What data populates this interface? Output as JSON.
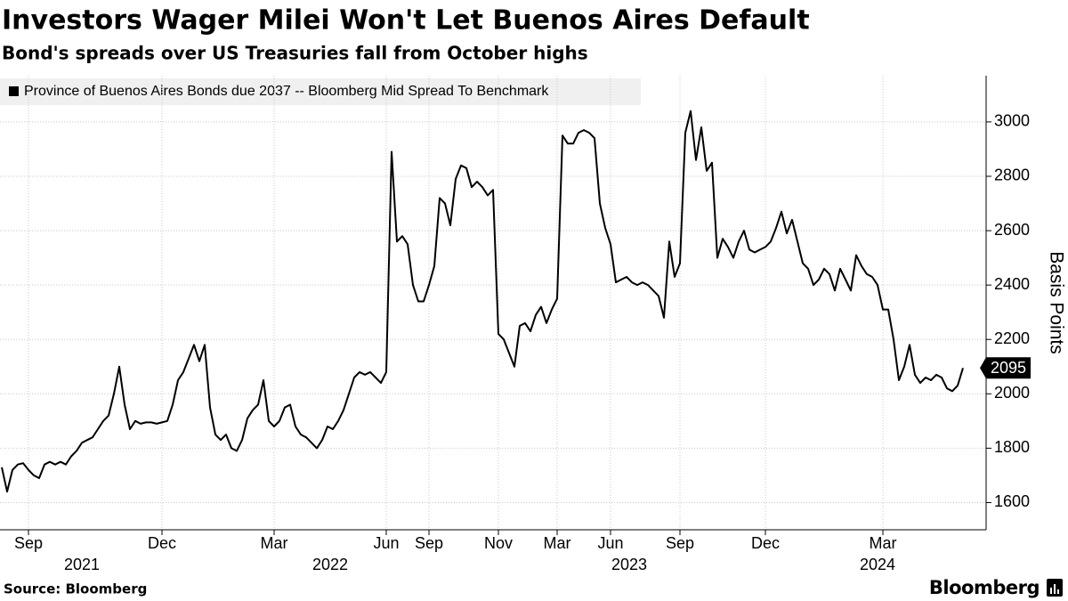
{
  "chart_data": {
    "type": "line",
    "title": "Investors Wager Milei Won't Let Buenos Aires Default",
    "subtitle": "Bond's spreads over US Treasuries fall from October highs",
    "y_axis_label": "Basis Points",
    "source": "Source: Bloomberg",
    "brand": "Bloomberg",
    "grid": true,
    "ylim": [
      1500,
      3170
    ],
    "yticks": [
      1600,
      1800,
      2000,
      2200,
      2400,
      2600,
      2800,
      3000
    ],
    "categories": [
      null,
      null,
      null,
      null,
      null,
      "Sep",
      null,
      null,
      null,
      null,
      null,
      null,
      null,
      null,
      null,
      null,
      null,
      null,
      null,
      null,
      null,
      null,
      null,
      null,
      null,
      null,
      null,
      null,
      null,
      null,
      "Dec",
      null,
      null,
      null,
      null,
      null,
      null,
      null,
      null,
      null,
      null,
      null,
      null,
      null,
      null,
      null,
      null,
      null,
      null,
      null,
      null,
      "Mar",
      null,
      null,
      null,
      null,
      null,
      null,
      null,
      null,
      null,
      null,
      null,
      null,
      null,
      null,
      null,
      null,
      null,
      null,
      null,
      null,
      "Jun",
      null,
      null,
      null,
      null,
      null,
      null,
      null,
      "Sep",
      null,
      null,
      null,
      null,
      null,
      null,
      null,
      null,
      null,
      null,
      null,
      null,
      "Nov",
      null,
      null,
      null,
      null,
      null,
      null,
      null,
      null,
      null,
      null,
      "Mar",
      null,
      null,
      null,
      null,
      null,
      null,
      null,
      null,
      null,
      "Jun",
      null,
      null,
      null,
      null,
      null,
      null,
      null,
      null,
      null,
      null,
      null,
      null,
      "Sep",
      null,
      null,
      null,
      null,
      null,
      null,
      null,
      null,
      null,
      null,
      null,
      null,
      null,
      null,
      null,
      "Dec",
      null,
      null,
      null,
      null,
      null,
      null,
      null,
      null,
      null,
      null,
      null,
      null,
      null,
      null,
      null,
      null,
      null,
      null,
      null,
      null,
      null,
      "Mar",
      null,
      null,
      null,
      null,
      null,
      null,
      null,
      null,
      null,
      null,
      null,
      null,
      null,
      null,
      null
    ],
    "x_groups": [
      {
        "label": "2021",
        "start": 0,
        "end": 30
      },
      {
        "label": "2022",
        "start": 38,
        "end": 85
      },
      {
        "label": "2023",
        "start": 99,
        "end": 136
      },
      {
        "label": "2024",
        "start": 150,
        "end": 178
      }
    ],
    "series": [
      {
        "name": "Province of Buenos Aires Bonds due 2037 -- Bloomberg Mid Spread To Benchmark",
        "color": "#000000",
        "values": [
          1730,
          1640,
          1720,
          1740,
          1745,
          1720,
          1700,
          1690,
          1740,
          1750,
          1740,
          1750,
          1740,
          1770,
          1790,
          1820,
          1830,
          1840,
          1870,
          1900,
          1920,
          2000,
          2100,
          1960,
          1870,
          1900,
          1890,
          1895,
          1895,
          1890,
          1895,
          1900,
          1960,
          2050,
          2080,
          2130,
          2180,
          2120,
          2180,
          1950,
          1850,
          1830,
          1850,
          1800,
          1790,
          1830,
          1910,
          1940,
          1960,
          2050,
          1900,
          1880,
          1900,
          1950,
          1960,
          1880,
          1850,
          1840,
          1820,
          1800,
          1830,
          1880,
          1870,
          1900,
          1940,
          2000,
          2060,
          2080,
          2070,
          2080,
          2060,
          2040,
          2080,
          2890,
          2560,
          2580,
          2550,
          2400,
          2340,
          2340,
          2400,
          2470,
          2720,
          2700,
          2620,
          2790,
          2840,
          2830,
          2760,
          2780,
          2760,
          2730,
          2750,
          2220,
          2200,
          2150,
          2100,
          2250,
          2260,
          2230,
          2290,
          2320,
          2260,
          2310,
          2350,
          2950,
          2920,
          2920,
          2960,
          2970,
          2960,
          2940,
          2700,
          2610,
          2550,
          2410,
          2420,
          2430,
          2410,
          2400,
          2410,
          2400,
          2380,
          2360,
          2280,
          2560,
          2430,
          2480,
          2960,
          3040,
          2860,
          2980,
          2820,
          2850,
          2500,
          2570,
          2540,
          2500,
          2560,
          2600,
          2530,
          2520,
          2530,
          2540,
          2560,
          2610,
          2670,
          2590,
          2640,
          2560,
          2480,
          2460,
          2400,
          2420,
          2460,
          2440,
          2380,
          2460,
          2420,
          2380,
          2510,
          2470,
          2440,
          2430,
          2400,
          2310,
          2310,
          2200,
          2050,
          2100,
          2180,
          2070,
          2040,
          2060,
          2050,
          2070,
          2060,
          2020,
          2010,
          2030,
          2095
        ]
      }
    ]
  }
}
